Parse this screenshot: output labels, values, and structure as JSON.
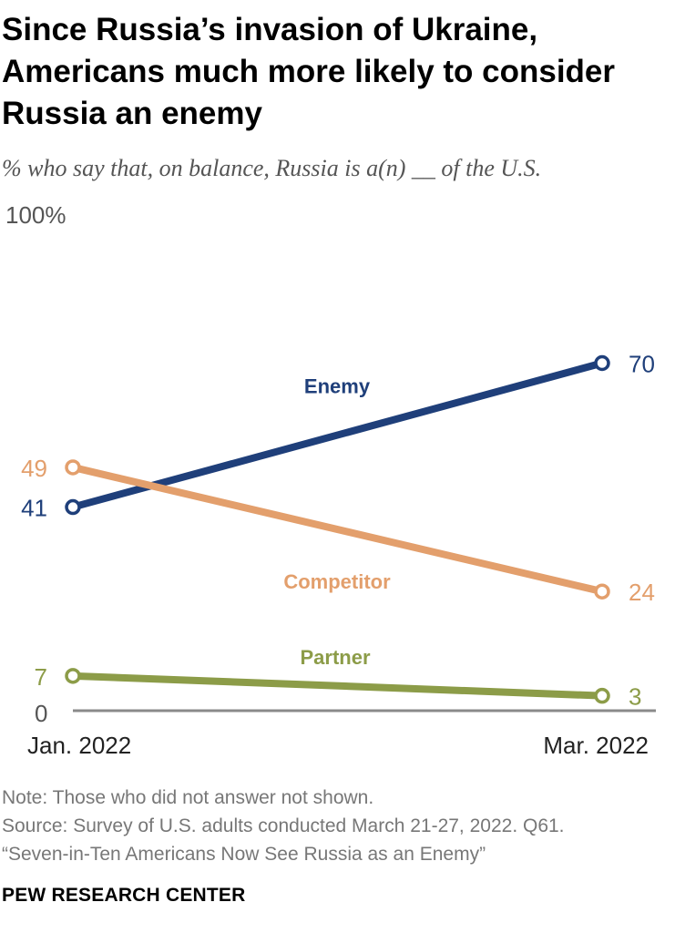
{
  "title": "Since Russia’s invasion of Ukraine, Americans much more likely to consider Russia an enemy",
  "subtitle": "% who say that, on balance, Russia is a(n) __ of the U.S.",
  "chart_data": {
    "type": "line",
    "x": [
      "Jan. 2022",
      "Mar. 2022"
    ],
    "ylim": [
      0,
      100
    ],
    "y_top_label": "100%",
    "y_zero_label": "0",
    "series": [
      {
        "name": "Enemy",
        "values": [
          41,
          70
        ],
        "color": "#1F3F7A"
      },
      {
        "name": "Competitor",
        "values": [
          49,
          24
        ],
        "color": "#E39F6C"
      },
      {
        "name": "Partner",
        "values": [
          7,
          3
        ],
        "color": "#8C9C48"
      }
    ]
  },
  "notes": {
    "note": "Note: Those who did not answer not shown.",
    "source": "Source: Survey of U.S. adults conducted March 21-27, 2022. Q61.",
    "report": "“Seven-in-Ten Americans Now See Russia as an Enemy”"
  },
  "brand": "PEW RESEARCH CENTER"
}
